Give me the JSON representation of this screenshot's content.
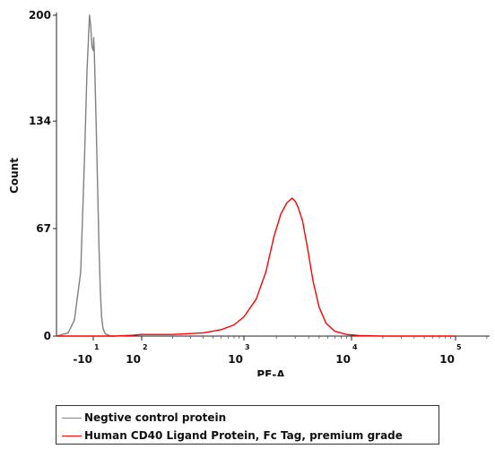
{
  "chart_data": {
    "type": "area",
    "title": "",
    "xlabel": "PE-A",
    "ylabel": "Count",
    "ylim": [
      0,
      200
    ],
    "y_ticks": [
      "0",
      "67",
      "134",
      "200"
    ],
    "x_ticks": [
      {
        "label": "-10",
        "exp": "1",
        "value": -10
      },
      {
        "label": "10",
        "exp": "2",
        "value": 100
      },
      {
        "label": "10",
        "exp": "3",
        "value": 1000
      },
      {
        "label": "10",
        "exp": "4",
        "value": 10000
      },
      {
        "label": "10",
        "exp": "5",
        "value": 100000
      }
    ],
    "x_scale": "biexponential",
    "grid": false,
    "legend_position": "bottom",
    "series": [
      {
        "name": "Negtive control protein",
        "color": "#808080",
        "points": [
          [
            -40,
            0
          ],
          [
            -30,
            2
          ],
          [
            -25,
            10
          ],
          [
            -20,
            40
          ],
          [
            -17,
            110
          ],
          [
            -15,
            165
          ],
          [
            -13,
            200
          ],
          [
            -12,
            193
          ],
          [
            -11,
            180
          ],
          [
            -10,
            178
          ],
          [
            -9,
            186
          ],
          [
            -8,
            180
          ],
          [
            -6,
            160
          ],
          [
            -3,
            128
          ],
          [
            0,
            92
          ],
          [
            3,
            55
          ],
          [
            6,
            28
          ],
          [
            9,
            12
          ],
          [
            12,
            5
          ],
          [
            16,
            2
          ],
          [
            20,
            1
          ],
          [
            30,
            0
          ],
          [
            40,
            0
          ]
        ]
      },
      {
        "name": "Human CD40 Ligand Protein, Fc Tag, premium grade",
        "color": "#ff0000",
        "points": [
          [
            -40,
            0
          ],
          [
            40,
            0
          ],
          [
            80,
            0.5
          ],
          [
            100,
            1
          ],
          [
            200,
            1
          ],
          [
            400,
            2
          ],
          [
            600,
            4
          ],
          [
            800,
            7
          ],
          [
            1000,
            12
          ],
          [
            1300,
            23
          ],
          [
            1600,
            40
          ],
          [
            1900,
            62
          ],
          [
            2200,
            76
          ],
          [
            2500,
            83
          ],
          [
            2800,
            86
          ],
          [
            3000,
            84
          ],
          [
            3200,
            80
          ],
          [
            3500,
            72
          ],
          [
            3900,
            55
          ],
          [
            4400,
            34
          ],
          [
            5000,
            18
          ],
          [
            5800,
            8
          ],
          [
            7000,
            3
          ],
          [
            9000,
            1
          ],
          [
            12000,
            0.3
          ],
          [
            20000,
            0
          ],
          [
            100000,
            0
          ]
        ]
      }
    ]
  }
}
